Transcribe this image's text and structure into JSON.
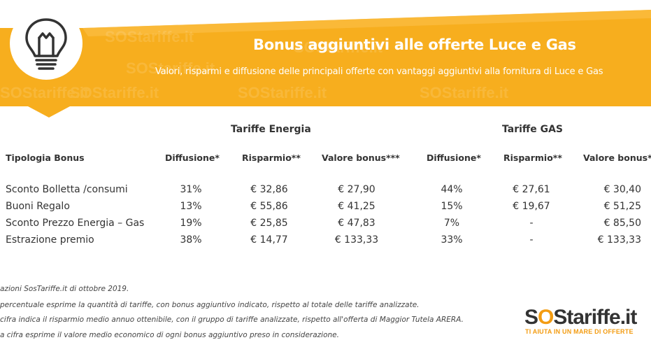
{
  "header": {
    "title": "Bonus aggiuntivi alle offerte Luce e Gas",
    "subtitle": "Valori, risparmi e diffusione delle principali offerte con vantaggi aggiuntivi alla fornitura di Luce e Gas",
    "watermark": "SOStariffe.it",
    "icon": "lightbulb-icon",
    "colors": {
      "orange": "#f7ae1e",
      "orange_light": "#fbc04a",
      "text": "#333333"
    }
  },
  "chart_data": {
    "type": "table",
    "groups": [
      "Tariffe Energia",
      "Tariffe GAS"
    ],
    "columns": [
      "Tipologia Bonus",
      "Diffusione*",
      "Risparmio**",
      "Valore bonus***",
      "Diffusione*",
      "Risparmio**",
      "Valore bonus***"
    ],
    "rows": [
      {
        "label": "Sconto Bolletta /consumi",
        "values": [
          "31%",
          "€ 32,86",
          "€ 27,90",
          "44%",
          "€ 27,61",
          "€ 30,40"
        ]
      },
      {
        "label": "Buoni Regalo",
        "values": [
          "13%",
          "€ 55,86",
          "€ 41,25",
          "15%",
          "€ 19,67",
          "€ 51,25"
        ]
      },
      {
        "label": "Sconto Prezzo Energia – Gas",
        "values": [
          "19%",
          "€ 25,85",
          "€ 47,83",
          "7%",
          "-",
          "€ 85,50"
        ]
      },
      {
        "label": "Estrazione premio",
        "values": [
          "38%",
          "€ 14,77",
          "€ 133,33",
          "33%",
          "-",
          "€ 133,33"
        ]
      }
    ]
  },
  "notes": [
    "azioni SosTariffe.it di ottobre 2019.",
    "percentuale esprime la quantità di tariffe, con bonus aggiuntivo indicato, rispetto al totale delle tariffe analizzate.",
    " cifra indica il risparmio medio annuo ottenibile, con il gruppo di tariffe analizzate, rispetto all'offerta di Maggior Tutela ARERA.",
    "a cifra esprime il valore medio economico di ogni bonus aggiuntivo preso in considerazione."
  ],
  "logo": {
    "prefix": "S",
    "accent": "O",
    "mid": "S",
    "suffix": "tariffe.it",
    "tagline": "TI AIUTA IN UN MARE DI OFFERTE"
  }
}
